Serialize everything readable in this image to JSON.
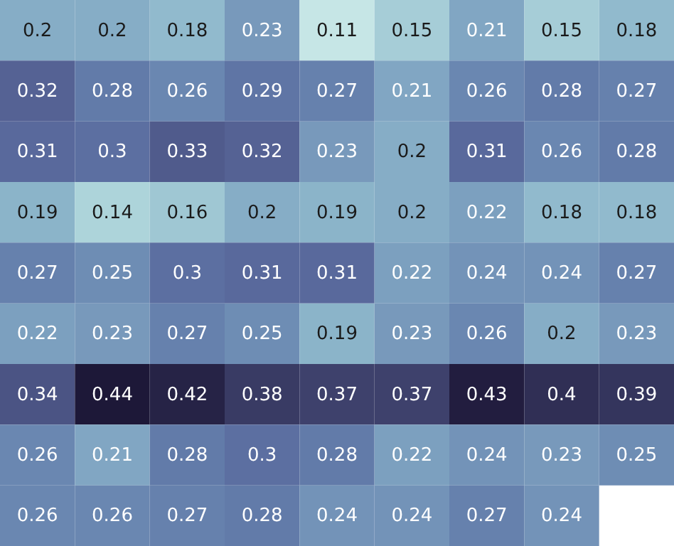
{
  "chart_data": {
    "type": "heatmap",
    "data_labels": true,
    "categories": [
      null,
      null,
      null,
      null,
      null,
      null,
      null,
      null,
      null
    ],
    "y_categories": [
      null,
      null,
      null,
      null,
      null,
      null,
      null,
      null,
      null
    ],
    "cells": [
      [
        0.2,
        0.2,
        0.18,
        0.23,
        0.11,
        0.15,
        0.21,
        0.15,
        0.18
      ],
      [
        0.32,
        0.28,
        0.26,
        0.29,
        0.27,
        0.21,
        0.26,
        0.28,
        0.27
      ],
      [
        0.31,
        0.3,
        0.33,
        0.32,
        0.23,
        0.2,
        0.31,
        0.26,
        0.28
      ],
      [
        0.19,
        0.14,
        0.16,
        0.2,
        0.19,
        0.2,
        0.22,
        0.18,
        0.18
      ],
      [
        0.27,
        0.25,
        0.3,
        0.31,
        0.31,
        0.22,
        0.24,
        0.24,
        0.27
      ],
      [
        0.22,
        0.23,
        0.27,
        0.25,
        0.19,
        0.23,
        0.26,
        0.2,
        0.23
      ],
      [
        0.34,
        0.44,
        0.42,
        0.38,
        0.37,
        0.37,
        0.43,
        0.4,
        0.39
      ],
      [
        0.26,
        0.21,
        0.28,
        0.3,
        0.28,
        0.22,
        0.24,
        0.23,
        0.25
      ],
      [
        0.26,
        0.26,
        0.27,
        0.28,
        0.24,
        0.24,
        0.27,
        0.24,
        null
      ]
    ]
  }
}
